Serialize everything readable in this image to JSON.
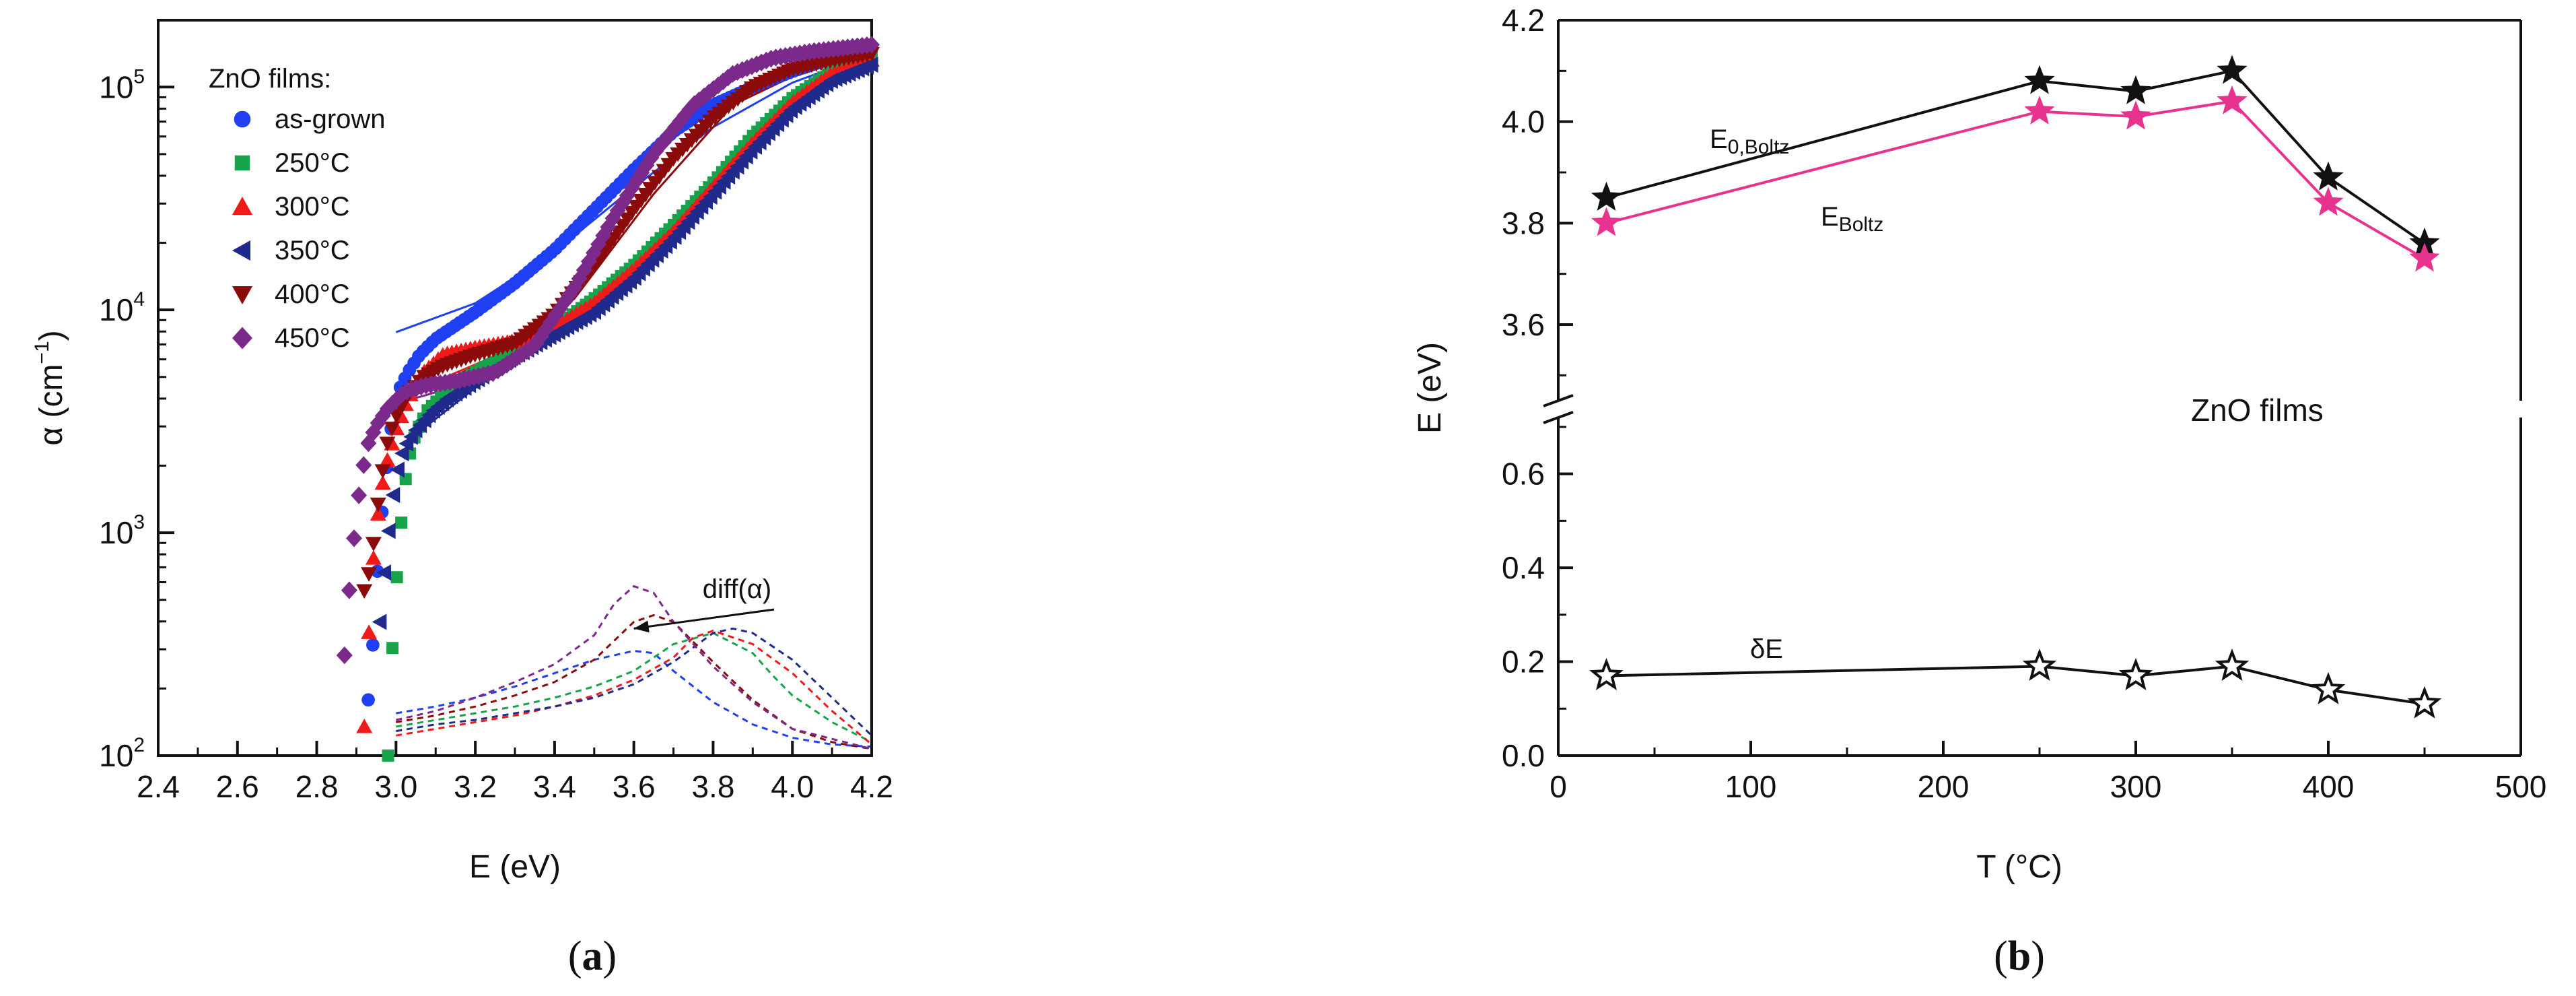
{
  "panel_labels": {
    "a": "a",
    "b": "b"
  },
  "chart_data": [
    {
      "type": "scatter",
      "panel": "a",
      "title": "",
      "xlabel": "E (eV)",
      "ylabel_main": "α (cm",
      "ylabel_exp": "−1",
      "ylabel_close": ")",
      "xlim": [
        2.4,
        4.2
      ],
      "ylim_log10": [
        2,
        5.3
      ],
      "yscale": "log",
      "x_ticks": [
        2.4,
        2.6,
        2.8,
        3.0,
        3.2,
        3.4,
        3.6,
        3.8,
        4.0,
        4.2
      ],
      "x_tick_labels": [
        "2.4",
        "2.6",
        "2.8",
        "3.0",
        "3.2",
        "3.4",
        "3.6",
        "3.8",
        "4.0",
        "4.2"
      ],
      "y_ticks": [
        {
          "exp": 2,
          "base": "10",
          "sup": "2"
        },
        {
          "exp": 3,
          "base": "10",
          "sup": "3"
        },
        {
          "exp": 4,
          "base": "10",
          "sup": "4"
        },
        {
          "exp": 5,
          "base": "10",
          "sup": "5"
        }
      ],
      "legend": {
        "title": "ZnO films:",
        "position": "top-left",
        "entries": [
          "as-grown",
          "250°C",
          "300°C",
          "350°C",
          "400°C",
          "450°C"
        ]
      },
      "annotation": {
        "text": "diff(α)",
        "arrow_to": [
          3.6,
          2.57
        ]
      },
      "series": [
        {
          "name": "as-grown",
          "color": "#1f3ff2",
          "marker": "circle",
          "x": [
            2.93,
            2.94,
            2.95,
            2.96,
            2.97,
            2.98,
            2.99,
            3.0,
            3.01,
            3.03,
            3.06,
            3.1,
            3.15,
            3.2,
            3.3,
            3.4,
            3.5,
            3.6,
            3.7,
            3.8,
            3.9,
            4.0,
            4.1,
            4.2
          ],
          "log10_alpha": [
            2.25,
            2.45,
            2.75,
            3.0,
            3.2,
            3.35,
            3.5,
            3.58,
            3.65,
            3.72,
            3.8,
            3.87,
            3.93,
            3.99,
            4.12,
            4.27,
            4.45,
            4.63,
            4.8,
            4.92,
            5.0,
            5.07,
            5.13,
            5.18
          ],
          "fit_x": [
            3.0,
            3.2,
            3.4,
            3.6,
            3.8,
            4.0,
            4.2
          ],
          "fit_log10": [
            3.9,
            4.03,
            4.26,
            4.55,
            4.82,
            5.02,
            5.15
          ],
          "diff_x": [
            3.0,
            3.1,
            3.2,
            3.3,
            3.4,
            3.5,
            3.6,
            3.65,
            3.7,
            3.8,
            3.9,
            4.0,
            4.1,
            4.2
          ],
          "diff_log10": [
            2.19,
            2.22,
            2.26,
            2.31,
            2.37,
            2.43,
            2.47,
            2.46,
            2.38,
            2.24,
            2.14,
            2.08,
            2.05,
            2.04
          ]
        },
        {
          "name": "250°C",
          "color": "#16a34a",
          "marker": "square",
          "x": [
            2.98,
            2.99,
            3.0,
            3.01,
            3.02,
            3.03,
            3.05,
            3.08,
            3.12,
            3.2,
            3.3,
            3.4,
            3.5,
            3.6,
            3.7,
            3.8,
            3.9,
            4.0,
            4.1,
            4.2
          ],
          "log10_alpha": [
            2.0,
            2.45,
            2.75,
            2.98,
            3.18,
            3.32,
            3.45,
            3.55,
            3.62,
            3.72,
            3.82,
            3.92,
            4.05,
            4.2,
            4.38,
            4.57,
            4.78,
            4.95,
            5.07,
            5.15
          ],
          "fit_x": [
            3.05,
            3.2,
            3.4,
            3.6,
            3.8,
            4.0,
            4.2
          ],
          "fit_log10": [
            3.5,
            3.7,
            3.9,
            4.2,
            4.57,
            4.92,
            5.13
          ],
          "diff_x": [
            3.0,
            3.1,
            3.2,
            3.3,
            3.4,
            3.5,
            3.6,
            3.7,
            3.8,
            3.9,
            3.95,
            4.0,
            4.1,
            4.2
          ],
          "diff_log10": [
            2.13,
            2.16,
            2.19,
            2.22,
            2.26,
            2.31,
            2.38,
            2.5,
            2.55,
            2.46,
            2.36,
            2.27,
            2.15,
            2.06
          ]
        },
        {
          "name": "300°C",
          "color": "#ef1b1b",
          "marker": "triangle",
          "x": [
            2.92,
            2.93,
            2.94,
            2.95,
            2.96,
            2.97,
            2.98,
            3.0,
            3.03,
            3.07,
            3.12,
            3.2,
            3.3,
            3.4,
            3.5,
            3.6,
            3.7,
            3.8,
            3.9,
            4.0,
            4.1,
            4.2
          ],
          "log10_alpha": [
            2.13,
            2.5,
            2.82,
            3.02,
            3.15,
            3.26,
            3.34,
            3.46,
            3.6,
            3.72,
            3.8,
            3.83,
            3.86,
            3.92,
            4.03,
            4.18,
            4.35,
            4.55,
            4.75,
            4.93,
            5.06,
            5.12
          ],
          "fit_x": [
            3.1,
            3.3,
            3.5,
            3.7,
            3.9,
            4.1,
            4.2
          ],
          "fit_log10": [
            3.68,
            3.83,
            4.01,
            4.32,
            4.72,
            5.03,
            5.11
          ],
          "diff_x": [
            3.0,
            3.1,
            3.2,
            3.3,
            3.4,
            3.5,
            3.6,
            3.7,
            3.75,
            3.8,
            3.9,
            4.0,
            4.1,
            4.2
          ],
          "diff_log10": [
            2.09,
            2.12,
            2.15,
            2.18,
            2.22,
            2.27,
            2.34,
            2.44,
            2.53,
            2.56,
            2.5,
            2.37,
            2.2,
            2.05
          ]
        },
        {
          "name": "350°C",
          "color": "#1f2a8c",
          "marker": "triangle-left",
          "x": [
            2.96,
            2.97,
            2.98,
            2.99,
            3.0,
            3.02,
            3.05,
            3.09,
            3.13,
            3.2,
            3.3,
            3.4,
            3.5,
            3.6,
            3.7,
            3.8,
            3.9,
            4.0,
            4.1,
            4.2
          ],
          "log10_alpha": [
            2.6,
            2.8,
            2.97,
            3.12,
            3.25,
            3.38,
            3.46,
            3.54,
            3.6,
            3.68,
            3.79,
            3.89,
            3.99,
            4.14,
            4.32,
            4.52,
            4.72,
            4.9,
            5.03,
            5.1
          ],
          "fit_x": [
            3.02,
            3.2,
            3.4,
            3.6,
            3.8,
            4.0,
            4.2
          ],
          "fit_log10": [
            3.4,
            3.65,
            3.88,
            4.14,
            4.5,
            4.88,
            5.12
          ],
          "diff_x": [
            3.0,
            3.1,
            3.2,
            3.3,
            3.4,
            3.5,
            3.6,
            3.7,
            3.8,
            3.85,
            3.9,
            4.0,
            4.1,
            4.2
          ],
          "diff_log10": [
            2.11,
            2.14,
            2.16,
            2.19,
            2.22,
            2.26,
            2.32,
            2.42,
            2.55,
            2.57,
            2.55,
            2.43,
            2.26,
            2.09
          ]
        },
        {
          "name": "400°C",
          "color": "#8b0a0a",
          "marker": "triangle-down",
          "x": [
            2.92,
            2.93,
            2.94,
            2.95,
            2.96,
            2.97,
            2.98,
            3.0,
            3.03,
            3.07,
            3.12,
            3.2,
            3.3,
            3.4,
            3.5,
            3.6,
            3.7,
            3.8,
            3.9,
            4.0,
            4.1,
            4.2
          ],
          "log10_alpha": [
            2.74,
            2.8,
            2.9,
            3.06,
            3.2,
            3.32,
            3.42,
            3.52,
            3.62,
            3.7,
            3.75,
            3.8,
            3.85,
            3.98,
            4.2,
            4.45,
            4.68,
            4.86,
            5.0,
            5.08,
            5.12,
            5.15
          ],
          "fit_x": [
            3.05,
            3.25,
            3.45,
            3.65,
            3.85,
            4.05,
            4.2
          ],
          "fit_log10": [
            3.62,
            3.79,
            4.05,
            4.52,
            4.92,
            5.09,
            5.15
          ],
          "diff_x": [
            3.0,
            3.1,
            3.2,
            3.3,
            3.4,
            3.5,
            3.6,
            3.65,
            3.7,
            3.8,
            3.9,
            4.0,
            4.1,
            4.2
          ],
          "diff_log10": [
            2.15,
            2.18,
            2.22,
            2.27,
            2.33,
            2.43,
            2.6,
            2.63,
            2.6,
            2.42,
            2.25,
            2.12,
            2.06,
            2.03
          ]
        },
        {
          "name": "450°C",
          "color": "#7b2a8c",
          "marker": "diamond",
          "x": [
            2.87,
            2.88,
            2.89,
            2.9,
            2.91,
            2.92,
            2.93,
            2.95,
            2.98,
            3.02,
            3.07,
            3.15,
            3.25,
            3.35,
            3.45,
            3.55,
            3.65,
            3.75,
            3.85,
            3.95,
            4.05,
            4.15,
            4.2
          ],
          "log10_alpha": [
            2.45,
            2.7,
            2.9,
            3.08,
            3.22,
            3.32,
            3.4,
            3.48,
            3.56,
            3.63,
            3.66,
            3.68,
            3.72,
            3.84,
            4.1,
            4.42,
            4.7,
            4.92,
            5.06,
            5.13,
            5.16,
            5.18,
            5.19
          ],
          "fit_x": [
            3.0,
            3.2,
            3.4,
            3.6,
            3.8,
            4.0,
            4.2
          ],
          "fit_log10": [
            3.58,
            3.68,
            3.96,
            4.57,
            4.99,
            5.15,
            5.19
          ],
          "diff_x": [
            3.0,
            3.1,
            3.2,
            3.3,
            3.4,
            3.5,
            3.55,
            3.6,
            3.65,
            3.7,
            3.8,
            3.9,
            4.0,
            4.2
          ],
          "diff_log10": [
            2.16,
            2.2,
            2.26,
            2.33,
            2.41,
            2.54,
            2.68,
            2.76,
            2.73,
            2.6,
            2.4,
            2.24,
            2.12,
            2.03
          ]
        }
      ]
    },
    {
      "type": "line",
      "panel": "b",
      "title": "",
      "xlabel": "T (°C)",
      "ylabel": "E (eV)",
      "xlim": [
        0,
        500
      ],
      "x_ticks": [
        0,
        100,
        200,
        300,
        400,
        500
      ],
      "x_tick_labels": [
        "0",
        "100",
        "200",
        "300",
        "400",
        "500"
      ],
      "y_axis_break": true,
      "upper_ylim": [
        3.45,
        4.2
      ],
      "lower_ylim": [
        0.0,
        0.72
      ],
      "upper_ticks": [
        3.6,
        3.8,
        4.0,
        4.2
      ],
      "upper_tick_labels": [
        "3.6",
        "3.8",
        "4.0",
        "4.2"
      ],
      "lower_ticks": [
        0.0,
        0.2,
        0.4,
        0.6
      ],
      "lower_tick_labels": [
        "0.0",
        "0.2",
        "0.4",
        "0.6"
      ],
      "annotation_text": "ZnO films",
      "x": [
        25,
        250,
        300,
        350,
        400,
        450
      ],
      "series": [
        {
          "name": "E0,Boltz",
          "label_main": "E",
          "label_sub": "0,Boltz",
          "color": "#111111",
          "marker": "filled-star",
          "segment": "upper",
          "values": [
            3.85,
            4.08,
            4.06,
            4.1,
            3.89,
            3.76
          ]
        },
        {
          "name": "EBoltz",
          "label_main": "E",
          "label_sub": "Boltz",
          "color": "#e8338e",
          "marker": "filled-star",
          "segment": "upper",
          "values": [
            3.8,
            4.02,
            4.01,
            4.04,
            3.84,
            3.73
          ]
        },
        {
          "name": "δE",
          "label_main": "δE",
          "label_sub": "",
          "color": "#111111",
          "marker": "open-star",
          "segment": "lower",
          "values": [
            0.17,
            0.19,
            0.17,
            0.19,
            0.14,
            0.11
          ]
        }
      ]
    }
  ]
}
